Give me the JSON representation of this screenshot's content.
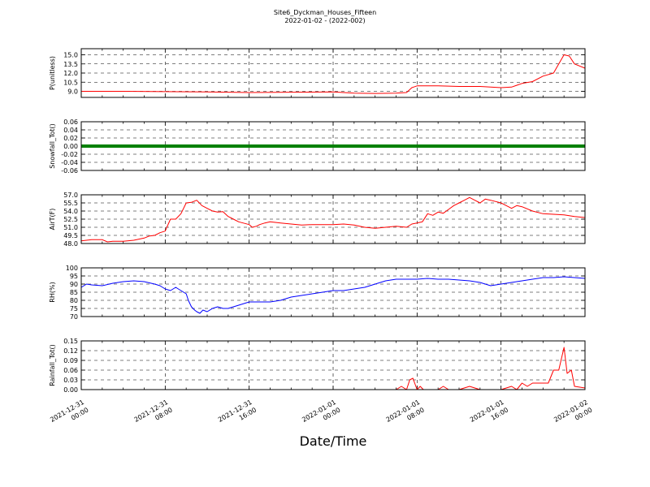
{
  "chart_data": {
    "title": "Site6_Dyckman_Houses_Fifteen",
    "subtitle": "2022-01-02 - (2022-002)",
    "xlabel": "Date/Time",
    "x_ticks": [
      "2021-12-31\n00:00",
      "2021-12-31\n08:00",
      "2021-12-31\n16:00",
      "2022-01-01\n00:00",
      "2022-01-01\n08:00",
      "2022-01-01\n16:00",
      "2022-01-02\n00:00"
    ],
    "x_range_hours": [
      0,
      48
    ],
    "grid": true,
    "panels": [
      {
        "type": "line",
        "ylabel": "P(unitless)",
        "color": "#ff0000",
        "ylim": [
          8.0,
          16.0
        ],
        "yticks": [
          "15.0",
          "13.5",
          "12.0",
          "10.5",
          "9.0"
        ],
        "ytick_values": [
          15.0,
          13.5,
          12.0,
          10.5,
          9.0
        ],
        "x": [
          0,
          2,
          4,
          8,
          12,
          16,
          20,
          24,
          26,
          28,
          30,
          31,
          31.5,
          32,
          34,
          36,
          38,
          40,
          41,
          42,
          43,
          44,
          45,
          45.5,
          46,
          46.5,
          47,
          48
        ],
        "values": [
          9.0,
          9.0,
          9.0,
          8.95,
          8.9,
          8.8,
          8.85,
          8.9,
          8.7,
          8.65,
          8.7,
          8.8,
          9.6,
          9.9,
          9.9,
          9.8,
          9.8,
          9.6,
          9.7,
          10.3,
          10.6,
          11.5,
          12.0,
          13.5,
          15.0,
          14.8,
          13.5,
          12.8
        ]
      },
      {
        "type": "line",
        "ylabel": "Snowfall_Tot()",
        "color": "#008000",
        "ylim": [
          -0.06,
          0.06
        ],
        "yticks": [
          "0.06",
          "0.04",
          "0.02",
          "0.00",
          "-0.02",
          "-0.04",
          "-0.06"
        ],
        "ytick_values": [
          0.06,
          0.04,
          0.02,
          0.0,
          -0.02,
          -0.04,
          -0.06
        ],
        "x": [
          0,
          48
        ],
        "values": [
          0.0,
          0.0
        ]
      },
      {
        "type": "line",
        "ylabel": "AirT(F)",
        "color": "#ff0000",
        "ylim": [
          48.0,
          57.0
        ],
        "yticks": [
          "57.0",
          "55.5",
          "54.0",
          "52.5",
          "51.0",
          "49.5",
          "48.0"
        ],
        "ytick_values": [
          57.0,
          55.5,
          54.0,
          52.5,
          51.0,
          49.5,
          48.0
        ],
        "x": [
          0,
          1,
          2,
          2.5,
          3,
          4,
          5,
          6,
          6.5,
          7,
          7.5,
          8,
          8.5,
          9,
          9.5,
          10,
          10.5,
          11,
          11.5,
          12,
          12.5,
          13,
          13.5,
          14,
          14.5,
          15,
          16,
          16.3,
          16.7,
          17,
          17.5,
          18,
          19,
          20,
          21,
          22,
          23,
          24,
          25,
          26,
          27,
          28,
          29,
          30,
          31,
          31.5,
          32,
          32.5,
          33,
          33.5,
          34,
          34.5,
          35,
          35.5,
          36,
          36.5,
          37,
          37.5,
          38,
          38.5,
          39,
          40,
          40.5,
          41,
          41.5,
          42,
          43,
          44,
          45,
          46,
          47,
          48
        ],
        "values": [
          48.5,
          48.7,
          48.7,
          48.3,
          48.4,
          48.4,
          48.6,
          49.0,
          49.4,
          49.5,
          50.0,
          50.3,
          52.5,
          52.5,
          53.5,
          55.5,
          55.6,
          56.0,
          55.0,
          54.5,
          54.0,
          53.8,
          53.9,
          53.0,
          52.5,
          52.0,
          51.5,
          51.0,
          51.2,
          51.5,
          51.8,
          52.0,
          51.8,
          51.6,
          51.4,
          51.5,
          51.5,
          51.5,
          51.6,
          51.4,
          51.0,
          50.8,
          51.0,
          51.2,
          51.0,
          51.6,
          51.8,
          52.0,
          53.5,
          53.2,
          53.8,
          53.6,
          54.3,
          55.0,
          55.5,
          56.0,
          56.5,
          56.0,
          55.5,
          56.2,
          56.0,
          55.5,
          55.0,
          54.5,
          55.0,
          54.8,
          54.0,
          53.5,
          53.4,
          53.3,
          53.0,
          52.8
        ]
      },
      {
        "type": "line",
        "ylabel": "RH(%)",
        "color": "#0000ff",
        "ylim": [
          70,
          100
        ],
        "yticks": [
          "100",
          "95",
          "90",
          "85",
          "80",
          "75",
          "70"
        ],
        "ytick_values": [
          100,
          95,
          90,
          85,
          80,
          75,
          70
        ],
        "x": [
          0,
          0.5,
          1,
          2,
          3,
          4,
          5,
          6,
          7,
          7.5,
          8,
          8.5,
          9,
          9.5,
          10,
          10.2,
          10.5,
          10.8,
          11,
          11.3,
          11.6,
          12,
          12.5,
          13,
          13.5,
          14,
          14.5,
          15,
          16,
          17,
          18,
          19,
          20,
          21,
          22,
          23,
          24,
          25,
          26,
          27,
          28,
          29,
          30,
          31,
          32,
          33,
          34,
          35,
          36,
          37,
          38,
          39,
          40,
          41,
          42,
          43,
          44,
          45,
          46,
          47,
          48
        ],
        "values": [
          88,
          90,
          89.5,
          89,
          90.5,
          91.5,
          92,
          91.5,
          90,
          89,
          87,
          86,
          88,
          86,
          84,
          80,
          76,
          74,
          73,
          72,
          74,
          73,
          75,
          76,
          75,
          75,
          76,
          77,
          79,
          79,
          79,
          80,
          82,
          83,
          84,
          85,
          86,
          86,
          87,
          88,
          90,
          92,
          93,
          93,
          93,
          93.5,
          93,
          93,
          92.5,
          92,
          91,
          89,
          90,
          91,
          92,
          93,
          94,
          94,
          94.5,
          94,
          93.5
        ]
      },
      {
        "type": "line",
        "ylabel": "Rainfall_Tot()",
        "color": "#ff0000",
        "ylim": [
          0.0,
          0.15
        ],
        "yticks": [
          "0.15",
          "0.12",
          "0.09",
          "0.06",
          "0.03",
          "0.00"
        ],
        "ytick_values": [
          0.15,
          0.12,
          0.09,
          0.06,
          0.03,
          0.0
        ],
        "x": [
          0,
          30,
          30.5,
          31,
          31.3,
          31.6,
          32,
          32.3,
          32.6,
          34,
          34.5,
          35,
          36,
          37,
          38,
          38.5,
          39,
          40,
          41,
          41.5,
          42,
          42.5,
          43,
          44,
          44.5,
          45,
          45.5,
          46,
          46.3,
          46.7,
          47,
          48
        ],
        "values": [
          0,
          0,
          0.01,
          0,
          0.03,
          0.035,
          0,
          0.01,
          0,
          0,
          0.01,
          0,
          0,
          0.01,
          0,
          0,
          0,
          0,
          0.01,
          0,
          0.02,
          0.01,
          0.02,
          0.02,
          0.02,
          0.06,
          0.06,
          0.13,
          0.05,
          0.06,
          0.01,
          0.005
        ]
      }
    ]
  }
}
